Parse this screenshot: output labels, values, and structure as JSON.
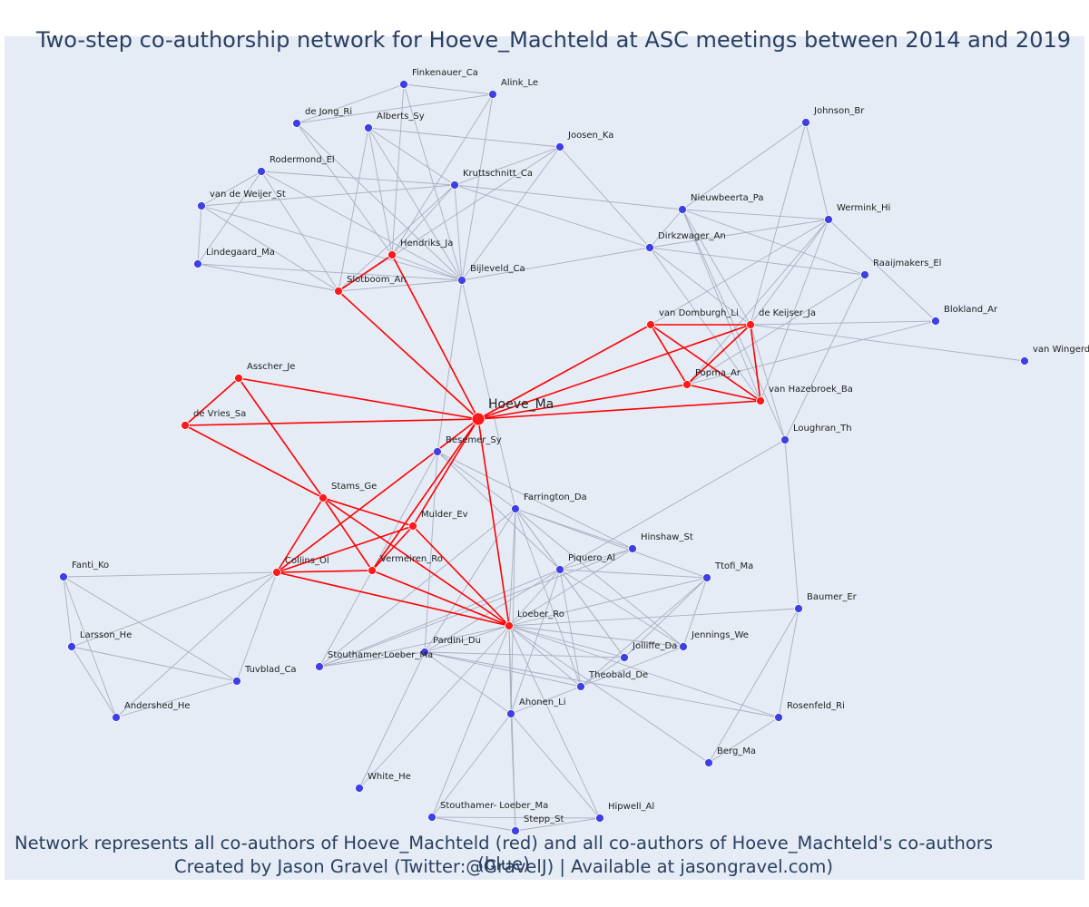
{
  "title": "Two-step co-authorship network for Hoeve_Machteld at ASC meetings between 2014 and 2019",
  "caption_line1": "Network represents all co-authors of Hoeve_Machteld (red) and all co-authors of Hoeve_Machteld's co-authors (blue)",
  "caption_line2": "Created by Jason Gravel (Twitter:@GravelJ) | Available at jasongravel.com)",
  "colors": {
    "background": "#e5ecf6",
    "direct_edge": "#ff0000",
    "indirect_edge": "#a9afc1",
    "direct_node": "#ff1a1a",
    "indirect_node": "#3f3fe6",
    "text": "#2a3f5f"
  },
  "chart_data": {
    "type": "network",
    "center": "Hoeve_Ma",
    "nodes": [
      {
        "id": "Hoeve_Ma",
        "group": "center"
      },
      {
        "id": "Hendriks_Ja",
        "group": "direct"
      },
      {
        "id": "Slotboom_An",
        "group": "direct"
      },
      {
        "id": "Asscher_Je",
        "group": "direct"
      },
      {
        "id": "de Vries_Sa",
        "group": "direct"
      },
      {
        "id": "Stams_Ge",
        "group": "direct"
      },
      {
        "id": "Mulder_Ev",
        "group": "direct"
      },
      {
        "id": "Collins_Ol",
        "group": "direct"
      },
      {
        "id": "Vermeiren_Ro",
        "group": "direct"
      },
      {
        "id": "Loeber_Ro",
        "group": "direct"
      },
      {
        "id": "van Domburgh_Li",
        "group": "direct"
      },
      {
        "id": "de Keijser_Ja",
        "group": "direct"
      },
      {
        "id": "Popma_Ar",
        "group": "direct"
      },
      {
        "id": "van Hazebroek_Ba",
        "group": "direct"
      },
      {
        "id": "Finkenauer_Ca",
        "group": "indirect"
      },
      {
        "id": "Alink_Le",
        "group": "indirect"
      },
      {
        "id": "de Jong_Ri",
        "group": "indirect"
      },
      {
        "id": "Alberts_Sy",
        "group": "indirect"
      },
      {
        "id": "Joosen_Ka",
        "group": "indirect"
      },
      {
        "id": "Rodermond_El",
        "group": "indirect"
      },
      {
        "id": "Kruttschnitt_Ca",
        "group": "indirect"
      },
      {
        "id": "van de Weijer_St",
        "group": "indirect"
      },
      {
        "id": "Lindegaard_Ma",
        "group": "indirect"
      },
      {
        "id": "Bijleveld_Ca",
        "group": "indirect"
      },
      {
        "id": "Johnson_Br",
        "group": "indirect"
      },
      {
        "id": "Nieuwbeerta_Pa",
        "group": "indirect"
      },
      {
        "id": "Wermink_Hi",
        "group": "indirect"
      },
      {
        "id": "Dirkzwager_An",
        "group": "indirect"
      },
      {
        "id": "Raaijmakers_El",
        "group": "indirect"
      },
      {
        "id": "Blokland_Ar",
        "group": "indirect"
      },
      {
        "id": "van Wingerd",
        "group": "indirect"
      },
      {
        "id": "Loughran_Th",
        "group": "indirect"
      },
      {
        "id": "Besemer_Sy",
        "group": "indirect"
      },
      {
        "id": "Farrington_Da",
        "group": "indirect"
      },
      {
        "id": "Hinshaw_St",
        "group": "indirect"
      },
      {
        "id": "Piquero_Al",
        "group": "indirect"
      },
      {
        "id": "Ttofi_Ma",
        "group": "indirect"
      },
      {
        "id": "Fanti_Ko",
        "group": "indirect"
      },
      {
        "id": "Baumer_Er",
        "group": "indirect"
      },
      {
        "id": "Larsson_He",
        "group": "indirect"
      },
      {
        "id": "Jennings_We",
        "group": "indirect"
      },
      {
        "id": "Jolliffe_Da",
        "group": "indirect"
      },
      {
        "id": "Pardini_Du",
        "group": "indirect"
      },
      {
        "id": "Stouthamer-Loeber_Ma",
        "group": "indirect"
      },
      {
        "id": "Tuvblad_Ca",
        "group": "indirect"
      },
      {
        "id": "Theobald_De",
        "group": "indirect"
      },
      {
        "id": "Andershed_He",
        "group": "indirect"
      },
      {
        "id": "Ahonen_Li",
        "group": "indirect"
      },
      {
        "id": "Rosenfeld_Ri",
        "group": "indirect"
      },
      {
        "id": "Berg_Ma",
        "group": "indirect"
      },
      {
        "id": "White_He",
        "group": "indirect"
      },
      {
        "id": "Stouthamer- Loeber_Ma",
        "group": "indirect"
      },
      {
        "id": "Hipwell_Al",
        "group": "indirect"
      },
      {
        "id": "Stepp_St",
        "group": "indirect"
      }
    ],
    "direct_edges": [
      [
        "Hoeve_Ma",
        "Hendriks_Ja"
      ],
      [
        "Hoeve_Ma",
        "Slotboom_An"
      ],
      [
        "Hendriks_Ja",
        "Slotboom_An"
      ],
      [
        "Hoeve_Ma",
        "Asscher_Je"
      ],
      [
        "Hoeve_Ma",
        "de Vries_Sa"
      ],
      [
        "Asscher_Je",
        "de Vries_Sa"
      ],
      [
        "Asscher_Je",
        "Stams_Ge"
      ],
      [
        "de Vries_Sa",
        "Stams_Ge"
      ],
      [
        "Hoeve_Ma",
        "Collins_Ol"
      ],
      [
        "Hoeve_Ma",
        "Mulder_Ev"
      ],
      [
        "Hoeve_Ma",
        "Vermeiren_Ro"
      ],
      [
        "Hoeve_Ma",
        "Loeber_Ro"
      ],
      [
        "Stams_Ge",
        "Collins_Ol"
      ],
      [
        "Stams_Ge",
        "Mulder_Ev"
      ],
      [
        "Stams_Ge",
        "Vermeiren_Ro"
      ],
      [
        "Stams_Ge",
        "Loeber_Ro"
      ],
      [
        "Collins_Ol",
        "Mulder_Ev"
      ],
      [
        "Collins_Ol",
        "Vermeiren_Ro"
      ],
      [
        "Collins_Ol",
        "Loeber_Ro"
      ],
      [
        "Mulder_Ev",
        "Vermeiren_Ro"
      ],
      [
        "Mulder_Ev",
        "Loeber_Ro"
      ],
      [
        "Vermeiren_Ro",
        "Loeber_Ro"
      ],
      [
        "Hoeve_Ma",
        "van Domburgh_Li"
      ],
      [
        "Hoeve_Ma",
        "de Keijser_Ja"
      ],
      [
        "Hoeve_Ma",
        "Popma_Ar"
      ],
      [
        "Hoeve_Ma",
        "van Hazebroek_Ba"
      ],
      [
        "van Domburgh_Li",
        "de Keijser_Ja"
      ],
      [
        "van Domburgh_Li",
        "Popma_Ar"
      ],
      [
        "van Domburgh_Li",
        "van Hazebroek_Ba"
      ],
      [
        "de Keijser_Ja",
        "Popma_Ar"
      ],
      [
        "de Keijser_Ja",
        "van Hazebroek_Ba"
      ],
      [
        "Popma_Ar",
        "van Hazebroek_Ba"
      ]
    ],
    "indirect_edges": [
      [
        "Finkenauer_Ca",
        "Alink_Le"
      ],
      [
        "Finkenauer_Ca",
        "de Jong_Ri"
      ],
      [
        "Finkenauer_Ca",
        "Hendriks_Ja"
      ],
      [
        "Finkenauer_Ca",
        "Bijleveld_Ca"
      ],
      [
        "Alink_Le",
        "de Jong_Ri"
      ],
      [
        "Alink_Le",
        "Hendriks_Ja"
      ],
      [
        "Alink_Le",
        "Bijleveld_Ca"
      ],
      [
        "de Jong_Ri",
        "Hendriks_Ja"
      ],
      [
        "de Jong_Ri",
        "Bijleveld_Ca"
      ],
      [
        "Alberts_Sy",
        "Joosen_Ka"
      ],
      [
        "Alberts_Sy",
        "Hendriks_Ja"
      ],
      [
        "Alberts_Sy",
        "Bijleveld_Ca"
      ],
      [
        "Alberts_Sy",
        "Kruttschnitt_Ca"
      ],
      [
        "Alberts_Sy",
        "Slotboom_An"
      ],
      [
        "Joosen_Ka",
        "Kruttschnitt_Ca"
      ],
      [
        "Joosen_Ka",
        "Bijleveld_Ca"
      ],
      [
        "Joosen_Ka",
        "Slotboom_An"
      ],
      [
        "Joosen_Ka",
        "Dirkzwager_An"
      ],
      [
        "Rodermond_El",
        "van de Weijer_St"
      ],
      [
        "Rodermond_El",
        "Kruttschnitt_Ca"
      ],
      [
        "Rodermond_El",
        "Lindegaard_Ma"
      ],
      [
        "Rodermond_El",
        "Bijleveld_Ca"
      ],
      [
        "Rodermond_El",
        "Slotboom_An"
      ],
      [
        "Kruttschnitt_Ca",
        "van de Weijer_St"
      ],
      [
        "Kruttschnitt_Ca",
        "Bijleveld_Ca"
      ],
      [
        "Kruttschnitt_Ca",
        "Slotboom_An"
      ],
      [
        "Kruttschnitt_Ca",
        "Nieuwbeerta_Pa"
      ],
      [
        "Kruttschnitt_Ca",
        "Dirkzwager_An"
      ],
      [
        "Kruttschnitt_Ca",
        "Hendriks_Ja"
      ],
      [
        "van de Weijer_St",
        "Lindegaard_Ma"
      ],
      [
        "van de Weijer_St",
        "Bijleveld_Ca"
      ],
      [
        "van de Weijer_St",
        "Slotboom_An"
      ],
      [
        "Lindegaard_Ma",
        "Bijleveld_Ca"
      ],
      [
        "Lindegaard_Ma",
        "Slotboom_An"
      ],
      [
        "Bijleveld_Ca",
        "Slotboom_An"
      ],
      [
        "Bijleveld_Ca",
        "Hendriks_Ja"
      ],
      [
        "Bijleveld_Ca",
        "Dirkzwager_An"
      ],
      [
        "Bijleveld_Ca",
        "Farrington_Da"
      ],
      [
        "Bijleveld_Ca",
        "Besemer_Sy"
      ],
      [
        "Johnson_Br",
        "Nieuwbeerta_Pa"
      ],
      [
        "Johnson_Br",
        "Wermink_Hi"
      ],
      [
        "Johnson_Br",
        "de Keijser_Ja"
      ],
      [
        "Nieuwbeerta_Pa",
        "Wermink_Hi"
      ],
      [
        "Nieuwbeerta_Pa",
        "Dirkzwager_An"
      ],
      [
        "Nieuwbeerta_Pa",
        "Raaijmakers_El"
      ],
      [
        "Nieuwbeerta_Pa",
        "de Keijser_Ja"
      ],
      [
        "Nieuwbeerta_Pa",
        "van Hazebroek_Ba"
      ],
      [
        "Nieuwbeerta_Pa",
        "Loughran_Th"
      ],
      [
        "Wermink_Hi",
        "Dirkzwager_An"
      ],
      [
        "Wermink_Hi",
        "de Keijser_Ja"
      ],
      [
        "Wermink_Hi",
        "Blokland_Ar"
      ],
      [
        "Wermink_Hi",
        "Popma_Ar"
      ],
      [
        "Wermink_Hi",
        "van Hazebroek_Ba"
      ],
      [
        "Wermink_Hi",
        "van Domburgh_Li"
      ],
      [
        "Dirkzwager_An",
        "Raaijmakers_El"
      ],
      [
        "Dirkzwager_An",
        "de Keijser_Ja"
      ],
      [
        "Dirkzwager_An",
        "van Hazebroek_Ba"
      ],
      [
        "Raaijmakers_El",
        "Loughran_Th"
      ],
      [
        "Raaijmakers_El",
        "Popma_Ar"
      ],
      [
        "de Keijser_Ja",
        "Blokland_Ar"
      ],
      [
        "de Keijser_Ja",
        "van Wingerd"
      ],
      [
        "de Keijser_Ja",
        "Loughran_Th"
      ],
      [
        "Blokland_Ar",
        "Popma_Ar"
      ],
      [
        "Besemer_Sy",
        "Farrington_Da"
      ],
      [
        "Besemer_Sy",
        "Hinshaw_St"
      ],
      [
        "Besemer_Sy",
        "Piquero_Al"
      ],
      [
        "Besemer_Sy",
        "Pardini_Du"
      ],
      [
        "Farrington_Da",
        "Hinshaw_St"
      ],
      [
        "Farrington_Da",
        "Piquero_Al"
      ],
      [
        "Farrington_Da",
        "Ttofi_Ma"
      ],
      [
        "Farrington_Da",
        "Jolliffe_Da"
      ],
      [
        "Farrington_Da",
        "Jennings_We"
      ],
      [
        "Farrington_Da",
        "Theobald_De"
      ],
      [
        "Farrington_Da",
        "Ahonen_Li"
      ],
      [
        "Farrington_Da",
        "Loeber_Ro"
      ],
      [
        "Farrington_Da",
        "Pardini_Du"
      ],
      [
        "Farrington_Da",
        "Stouthamer-Loeber_Ma"
      ],
      [
        "Loughran_Th",
        "Piquero_Al"
      ],
      [
        "Loughran_Th",
        "Baumer_Er"
      ],
      [
        "Piquero_Al",
        "Hinshaw_St"
      ],
      [
        "Piquero_Al",
        "Ttofi_Ma"
      ],
      [
        "Piquero_Al",
        "Jennings_We"
      ],
      [
        "Piquero_Al",
        "Jolliffe_Da"
      ],
      [
        "Piquero_Al",
        "Theobald_De"
      ],
      [
        "Piquero_Al",
        "Ahonen_Li"
      ],
      [
        "Ttofi_Ma",
        "Jennings_We"
      ],
      [
        "Ttofi_Ma",
        "Jolliffe_Da"
      ],
      [
        "Ttofi_Ma",
        "Theobald_De"
      ],
      [
        "Ttofi_Ma",
        "Loeber_Ro"
      ],
      [
        "Fanti_Ko",
        "Larsson_He"
      ],
      [
        "Fanti_Ko",
        "Andershed_He"
      ],
      [
        "Fanti_Ko",
        "Tuvblad_Ca"
      ],
      [
        "Fanti_Ko",
        "Collins_Ol"
      ],
      [
        "Larsson_He",
        "Andershed_He"
      ],
      [
        "Larsson_He",
        "Tuvblad_Ca"
      ],
      [
        "Larsson_He",
        "Collins_Ol"
      ],
      [
        "Andershed_He",
        "Tuvblad_Ca"
      ],
      [
        "Andershed_He",
        "Collins_Ol"
      ],
      [
        "Tuvblad_Ca",
        "Collins_Ol"
      ],
      [
        "Baumer_Er",
        "Rosenfeld_Ri"
      ],
      [
        "Baumer_Er",
        "Berg_Ma"
      ],
      [
        "Baumer_Er",
        "Loeber_Ro"
      ],
      [
        "Rosenfeld_Ri",
        "Berg_Ma"
      ],
      [
        "Rosenfeld_Ri",
        "Loeber_Ro"
      ],
      [
        "Loeber_Ro",
        "Hinshaw_St"
      ],
      [
        "Loeber_Ro",
        "Piquero_Al"
      ],
      [
        "Loeber_Ro",
        "Jennings_We"
      ],
      [
        "Loeber_Ro",
        "Jolliffe_Da"
      ],
      [
        "Loeber_Ro",
        "Pardini_Du"
      ],
      [
        "Loeber_Ro",
        "Stouthamer-Loeber_Ma"
      ],
      [
        "Loeber_Ro",
        "Theobald_De"
      ],
      [
        "Loeber_Ro",
        "Ahonen_Li"
      ],
      [
        "Loeber_Ro",
        "White_He"
      ],
      [
        "Loeber_Ro",
        "Stouthamer- Loeber_Ma"
      ],
      [
        "Loeber_Ro",
        "Hipwell_Al"
      ],
      [
        "Loeber_Ro",
        "Stepp_St"
      ],
      [
        "Loeber_Ro",
        "Berg_Ma"
      ],
      [
        "Pardini_Du",
        "Stouthamer-Loeber_Ma"
      ],
      [
        "Pardini_Du",
        "Theobald_De"
      ],
      [
        "Pardini_Du",
        "Ahonen_Li"
      ],
      [
        "Pardini_Du",
        "White_He"
      ],
      [
        "Pardini_Du",
        "Jolliffe_Da"
      ],
      [
        "Pardini_Du",
        "Rosenfeld_Ri"
      ],
      [
        "Pardini_Du",
        "Piquero_Al"
      ],
      [
        "Stouthamer-Loeber_Ma",
        "Piquero_Al"
      ],
      [
        "Stouthamer-Loeber_Ma",
        "Hinshaw_St"
      ],
      [
        "Theobald_De",
        "Ahonen_Li"
      ],
      [
        "Theobald_De",
        "Jennings_We"
      ],
      [
        "Theobald_De",
        "Jolliffe_Da"
      ],
      [
        "Ahonen_Li",
        "Stouthamer- Loeber_Ma"
      ],
      [
        "Ahonen_Li",
        "Hipwell_Al"
      ],
      [
        "Ahonen_Li",
        "Stepp_St"
      ],
      [
        "Stouthamer- Loeber_Ma",
        "Hipwell_Al"
      ],
      [
        "Stouthamer- Loeber_Ma",
        "Stepp_St"
      ],
      [
        "Hipwell_Al",
        "Stepp_St"
      ],
      [
        "Besemer_Sy",
        "Stouthamer-Loeber_Ma"
      ]
    ]
  }
}
